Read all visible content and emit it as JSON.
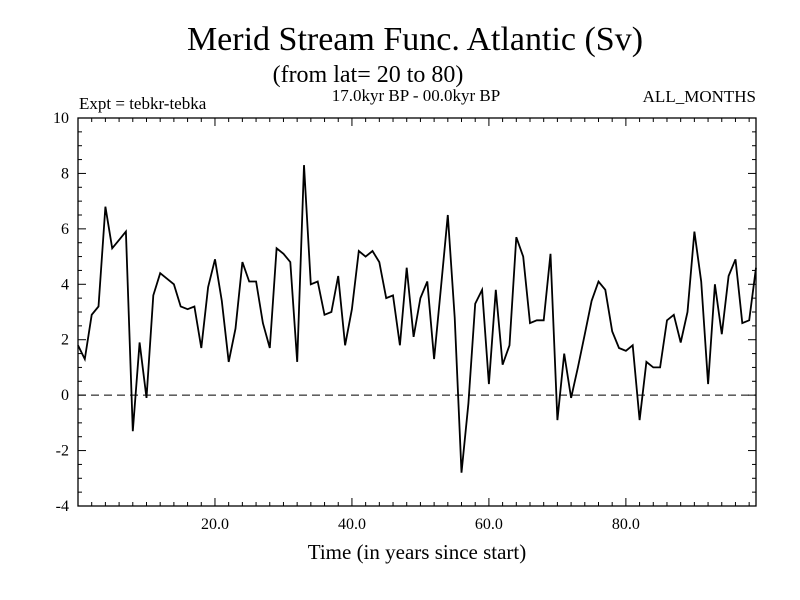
{
  "chart_data": {
    "type": "line",
    "title": "Merid Stream Func. Atlantic (Sv)",
    "subtitle": "(from lat= 20 to 80)",
    "left_note": "Expt = tebkr-tebka",
    "center_note": "17.0kyr BP - 00.0kyr BP",
    "right_note": "ALL_MONTHS",
    "xlabel": "Time (in years since start)",
    "ylabel": "",
    "xlim": [
      0,
      99
    ],
    "ylim": [
      -4,
      10
    ],
    "xticks": [
      20,
      40,
      60,
      80
    ],
    "xtick_labels": [
      "20.0",
      "40.0",
      "60.0",
      "80.0"
    ],
    "yticks": [
      -4,
      -2,
      0,
      2,
      4,
      6,
      8,
      10
    ],
    "ytick_labels": [
      "-4",
      "-2",
      "0",
      "2",
      "4",
      "6",
      "8",
      "10"
    ],
    "reference_line": 0,
    "grid": false,
    "line_color": "#000000",
    "series": [
      {
        "x": [
          0,
          1,
          2,
          3,
          4,
          5,
          6,
          7,
          8,
          9,
          10,
          11,
          12,
          13,
          14,
          15,
          16,
          17,
          18,
          19,
          20,
          21,
          22,
          23,
          24,
          25,
          26,
          27,
          28,
          29,
          30,
          31,
          32,
          33,
          34,
          35,
          36,
          37,
          38,
          39,
          40,
          41,
          42,
          43,
          44,
          45,
          46,
          47,
          48,
          49,
          50,
          51,
          52,
          53,
          54,
          55,
          56,
          57,
          58,
          59,
          60,
          61,
          62,
          63,
          64,
          65,
          66,
          67,
          68,
          69,
          70,
          71,
          72,
          73,
          74,
          75,
          76,
          77,
          78,
          79,
          80,
          81,
          82,
          83,
          84,
          85,
          86,
          87,
          88,
          89,
          90,
          91,
          92,
          93,
          94,
          95,
          96,
          97,
          98,
          99
        ],
        "values": [
          1.8,
          1.3,
          2.9,
          3.2,
          6.8,
          5.3,
          5.6,
          5.9,
          -1.3,
          1.9,
          -0.1,
          3.6,
          4.4,
          4.2,
          4.0,
          3.2,
          3.1,
          3.2,
          1.7,
          3.9,
          4.9,
          3.4,
          1.2,
          2.4,
          4.8,
          4.1,
          4.1,
          2.6,
          1.7,
          5.3,
          5.1,
          4.8,
          1.2,
          8.3,
          4.0,
          4.1,
          2.9,
          3.0,
          4.3,
          1.8,
          3.1,
          5.2,
          5.0,
          5.2,
          4.8,
          3.5,
          3.6,
          1.8,
          4.6,
          2.1,
          3.5,
          4.1,
          1.3,
          3.9,
          6.5,
          2.8,
          -2.8,
          -0.3,
          3.3,
          3.8,
          0.4,
          3.8,
          1.1,
          1.8,
          5.7,
          5.0,
          2.6,
          2.7,
          2.7,
          5.1,
          -0.9,
          1.5,
          -0.1,
          1.0,
          2.2,
          3.4,
          4.1,
          3.8,
          2.3,
          1.7,
          1.6,
          1.8,
          -0.9,
          1.2,
          1.0,
          1.0,
          2.7,
          2.9,
          1.9,
          3.0,
          5.9,
          4.1,
          0.4,
          4.0,
          2.2,
          4.3,
          4.9,
          2.6,
          2.7,
          4.6
        ]
      }
    ]
  }
}
